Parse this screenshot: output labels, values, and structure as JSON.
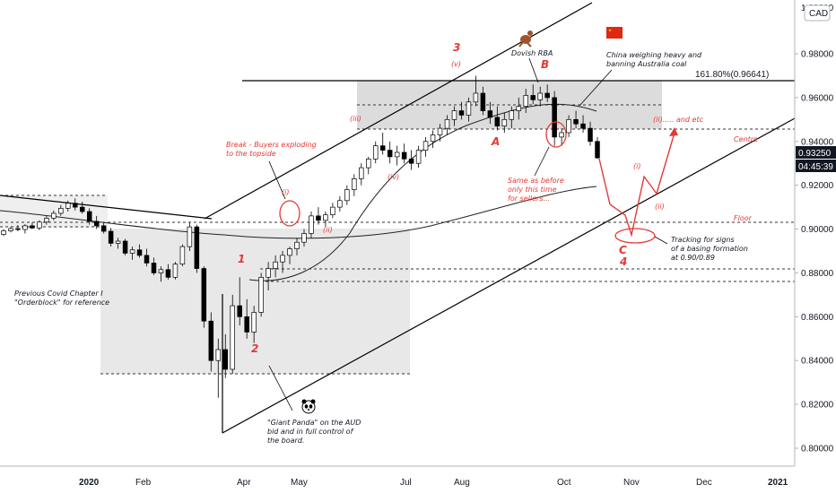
{
  "chart_data": {
    "type": "candlestick",
    "symbol_currency": "CAD",
    "y_axis": {
      "ticks": [
        "0.98000",
        "0.96000",
        "0.94000",
        "0.92000",
        "0.90000",
        "0.88000",
        "0.86000",
        "0.84000",
        "0.82000",
        "0.80000"
      ],
      "top_partial": "1.00000",
      "ylim": [
        0.795,
        1.0
      ]
    },
    "x_axis": {
      "ticks": [
        "2020",
        "Feb",
        "Apr",
        "May",
        "Jul",
        "Aug",
        "Oct",
        "Nov",
        "Dec",
        "2021"
      ]
    },
    "current_price": {
      "value": "0.93250",
      "countdown": "04:45:39"
    },
    "fib_level": {
      "label": "161.80%(0.96641)",
      "value": 0.96641
    },
    "levels": [
      {
        "value": 0.9445,
        "label": "Centre"
      },
      {
        "value": 0.9015,
        "label": "Floor"
      },
      {
        "value": 0.8805,
        "label": ""
      },
      {
        "value": 0.8748,
        "label": ""
      }
    ],
    "waves": {
      "major": [
        "1",
        "2",
        "3",
        "B",
        "A",
        "C",
        "4"
      ],
      "minor": [
        "(i)",
        "(ii)",
        "(iii)",
        "(iv)",
        "(v)",
        "(i)",
        "(ii)"
      ]
    },
    "annotations": {
      "dovish": "Dovish RBA",
      "china": [
        "China weighing heavy and",
        "banning Australia coal"
      ],
      "break": [
        "Break - Buyers exploding",
        "to the topside"
      ],
      "same": [
        "Same as before",
        "only this time",
        "for sellers..."
      ],
      "covid": [
        "Previous Covid Chapter I",
        "\"Orderblock\" for reference"
      ],
      "panda": [
        "\"Giant Panda\" on the AUD",
        "bid and in full control of",
        "the board."
      ],
      "basing": [
        "Tracking for signs",
        "of a basing formation",
        "at 0.90/0.89"
      ],
      "etc": "(ii)..... and etc"
    },
    "candles": [
      [
        0.8975,
        0.9,
        0.8968,
        0.8992
      ],
      [
        0.8992,
        0.901,
        0.8985,
        0.9002
      ],
      [
        0.9002,
        0.9018,
        0.899,
        0.8998
      ],
      [
        0.8998,
        0.9022,
        0.898,
        0.9015
      ],
      [
        0.9015,
        0.903,
        0.9,
        0.9005
      ],
      [
        0.9005,
        0.904,
        0.8995,
        0.9032
      ],
      [
        0.9032,
        0.906,
        0.902,
        0.905
      ],
      [
        0.905,
        0.9085,
        0.904,
        0.9072
      ],
      [
        0.9072,
        0.911,
        0.906,
        0.9095
      ],
      [
        0.9095,
        0.913,
        0.908,
        0.9118
      ],
      [
        0.9118,
        0.914,
        0.9085,
        0.91
      ],
      [
        0.91,
        0.9125,
        0.907,
        0.908
      ],
      [
        0.908,
        0.9095,
        0.902,
        0.9035
      ],
      [
        0.9035,
        0.906,
        0.9,
        0.9015
      ],
      [
        0.9015,
        0.903,
        0.898,
        0.899
      ],
      [
        0.899,
        0.9005,
        0.892,
        0.8935
      ],
      [
        0.8935,
        0.896,
        0.891,
        0.8945
      ],
      [
        0.8945,
        0.8955,
        0.888,
        0.889
      ],
      [
        0.889,
        0.892,
        0.886,
        0.8905
      ],
      [
        0.8905,
        0.893,
        0.887,
        0.888
      ],
      [
        0.888,
        0.891,
        0.883,
        0.8845
      ],
      [
        0.8845,
        0.887,
        0.879,
        0.88
      ],
      [
        0.88,
        0.883,
        0.876,
        0.8815
      ],
      [
        0.8815,
        0.884,
        0.877,
        0.878
      ],
      [
        0.878,
        0.885,
        0.877,
        0.884
      ],
      [
        0.884,
        0.893,
        0.883,
        0.892
      ],
      [
        0.892,
        0.903,
        0.89,
        0.901
      ],
      [
        0.901,
        0.902,
        0.88,
        0.882
      ],
      [
        0.882,
        0.883,
        0.855,
        0.858
      ],
      [
        0.858,
        0.862,
        0.835,
        0.84
      ],
      [
        0.84,
        0.85,
        0.823,
        0.845
      ],
      [
        0.845,
        0.852,
        0.832,
        0.836
      ],
      [
        0.836,
        0.87,
        0.834,
        0.865
      ],
      [
        0.865,
        0.878,
        0.856,
        0.86
      ],
      [
        0.86,
        0.868,
        0.85,
        0.853
      ],
      [
        0.853,
        0.865,
        0.848,
        0.862
      ],
      [
        0.862,
        0.88,
        0.86,
        0.878
      ],
      [
        0.878,
        0.885,
        0.872,
        0.882
      ],
      [
        0.882,
        0.888,
        0.878,
        0.885
      ],
      [
        0.885,
        0.89,
        0.88,
        0.888
      ],
      [
        0.888,
        0.892,
        0.884,
        0.891
      ],
      [
        0.891,
        0.896,
        0.888,
        0.894
      ],
      [
        0.894,
        0.9,
        0.892,
        0.898
      ],
      [
        0.898,
        0.908,
        0.896,
        0.906
      ],
      [
        0.906,
        0.91,
        0.902,
        0.904
      ],
      [
        0.904,
        0.908,
        0.901,
        0.9065
      ],
      [
        0.9065,
        0.912,
        0.905,
        0.91
      ],
      [
        0.91,
        0.915,
        0.908,
        0.913
      ],
      [
        0.913,
        0.92,
        0.911,
        0.918
      ],
      [
        0.918,
        0.925,
        0.915,
        0.923
      ],
      [
        0.923,
        0.93,
        0.92,
        0.928
      ],
      [
        0.928,
        0.933,
        0.925,
        0.932
      ],
      [
        0.932,
        0.94,
        0.93,
        0.938
      ],
      [
        0.938,
        0.944,
        0.934,
        0.936
      ],
      [
        0.936,
        0.94,
        0.93,
        0.933
      ],
      [
        0.933,
        0.938,
        0.929,
        0.935
      ],
      [
        0.935,
        0.939,
        0.93,
        0.932
      ],
      [
        0.932,
        0.936,
        0.927,
        0.93
      ],
      [
        0.93,
        0.938,
        0.928,
        0.936
      ],
      [
        0.936,
        0.942,
        0.933,
        0.94
      ],
      [
        0.94,
        0.945,
        0.937,
        0.943
      ],
      [
        0.943,
        0.948,
        0.94,
        0.946
      ],
      [
        0.946,
        0.952,
        0.943,
        0.95
      ],
      [
        0.95,
        0.956,
        0.947,
        0.954
      ],
      [
        0.954,
        0.958,
        0.95,
        0.952
      ],
      [
        0.952,
        0.96,
        0.949,
        0.958
      ],
      [
        0.958,
        0.97,
        0.956,
        0.962
      ],
      [
        0.962,
        0.965,
        0.952,
        0.954
      ],
      [
        0.954,
        0.958,
        0.948,
        0.951
      ],
      [
        0.951,
        0.956,
        0.945,
        0.947
      ],
      [
        0.947,
        0.953,
        0.944,
        0.95
      ],
      [
        0.95,
        0.956,
        0.946,
        0.954
      ],
      [
        0.954,
        0.96,
        0.95,
        0.956
      ],
      [
        0.956,
        0.964,
        0.953,
        0.961
      ],
      [
        0.961,
        0.966,
        0.957,
        0.959
      ],
      [
        0.959,
        0.965,
        0.956,
        0.962
      ],
      [
        0.962,
        0.966,
        0.958,
        0.96
      ],
      [
        0.96,
        0.963,
        0.938,
        0.942
      ],
      [
        0.942,
        0.946,
        0.938,
        0.944
      ],
      [
        0.944,
        0.952,
        0.942,
        0.95
      ],
      [
        0.95,
        0.954,
        0.946,
        0.948
      ],
      [
        0.948,
        0.952,
        0.944,
        0.946
      ],
      [
        0.946,
        0.949,
        0.938,
        0.94
      ],
      [
        0.94,
        0.942,
        0.932,
        0.9325
      ]
    ]
  }
}
